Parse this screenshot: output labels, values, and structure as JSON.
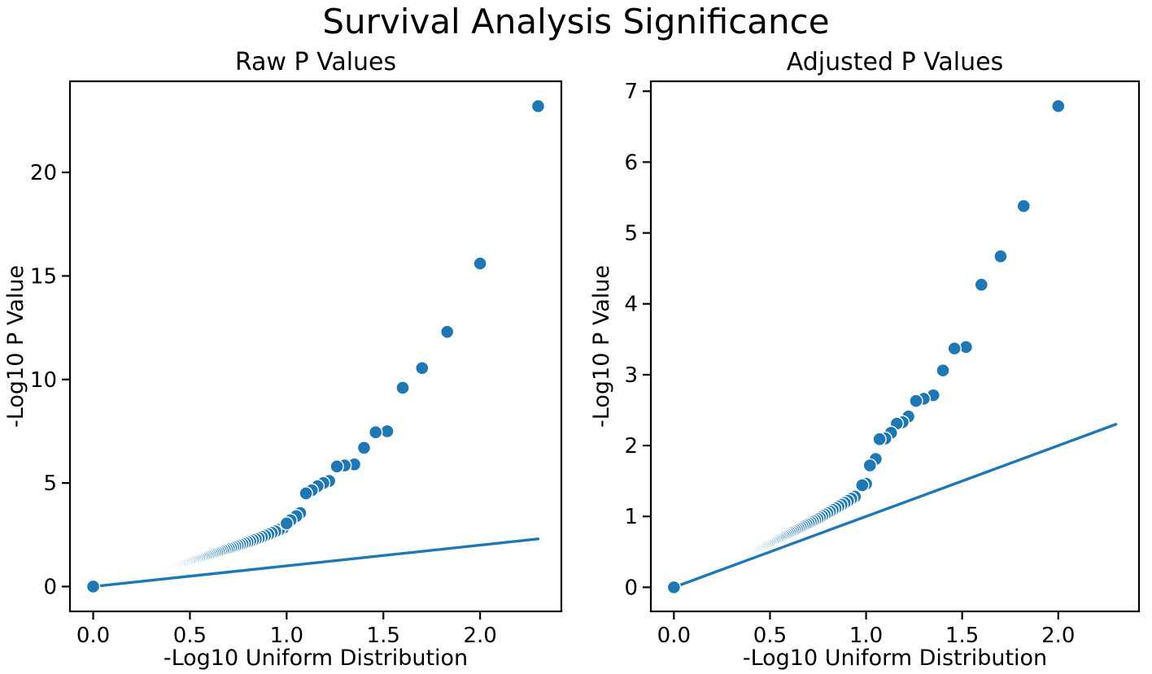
{
  "figure": {
    "title": "Survival Analysis Significance",
    "background_color": "#ffffff",
    "accent_color": "#1f77b4",
    "spine_color": "#000000"
  },
  "chart_data": [
    {
      "id": "raw",
      "type": "scatter",
      "title": "Raw P Values",
      "xlabel": "-Log10 Uniform Distribution",
      "ylabel": "-Log10 P Value",
      "xlim": [
        -0.12,
        2.42
      ],
      "ylim": [
        -1.2,
        24.4
      ],
      "xticks": {
        "values": [
          0,
          0.5,
          1,
          1.5,
          2
        ],
        "labels": [
          "0.0",
          "0.5",
          "1.0",
          "1.5",
          "2.0"
        ]
      },
      "yticks": {
        "values": [
          0,
          5,
          10,
          15,
          20
        ],
        "labels": [
          "0",
          "5",
          "10",
          "15",
          "20"
        ]
      },
      "grid": false,
      "legend": null,
      "reference_line": {
        "x": [
          0,
          2.3
        ],
        "y": [
          0,
          2.3
        ]
      },
      "marker": {
        "fill": "#1f77b4",
        "edge": "#ffffff",
        "radius": 8.0,
        "edge_width": 1.4
      },
      "line_style": {
        "color": "#1f77b4",
        "width": 3.4
      },
      "points": [
        [
          2.3,
          23.2
        ],
        [
          2.0,
          15.6
        ],
        [
          1.83,
          12.3
        ],
        [
          1.7,
          10.55
        ],
        [
          1.6,
          9.6
        ],
        [
          1.52,
          7.5
        ],
        [
          1.46,
          7.45
        ],
        [
          1.4,
          6.7
        ],
        [
          1.35,
          5.9
        ],
        [
          1.3,
          5.85
        ],
        [
          1.26,
          5.8
        ],
        [
          1.22,
          5.1
        ],
        [
          1.19,
          5.0
        ],
        [
          1.16,
          4.85
        ],
        [
          1.13,
          4.65
        ],
        [
          1.1,
          4.5
        ],
        [
          1.07,
          3.55
        ],
        [
          1.05,
          3.4
        ],
        [
          1.02,
          3.2
        ],
        [
          1.0,
          3.05
        ],
        [
          0.0,
          0.0
        ]
      ],
      "dense_band": {
        "description": "overplotted low-significance points hugging just above the reference line",
        "n_tests": 200,
        "index_start": 21,
        "index_end": 200,
        "curve_samples": [
          [
            0.98,
            2.82
          ],
          [
            0.95,
            2.7
          ],
          [
            0.9,
            2.5
          ],
          [
            0.85,
            2.32
          ],
          [
            0.8,
            2.15
          ],
          [
            0.75,
            1.99
          ],
          [
            0.7,
            1.84
          ],
          [
            0.65,
            1.68
          ],
          [
            0.6,
            1.53
          ],
          [
            0.55,
            1.38
          ],
          [
            0.5,
            1.24
          ],
          [
            0.45,
            1.09
          ],
          [
            0.4,
            0.95
          ],
          [
            0.35,
            0.81
          ],
          [
            0.3,
            0.68
          ],
          [
            0.25,
            0.55
          ],
          [
            0.2,
            0.43
          ],
          [
            0.15,
            0.31
          ],
          [
            0.1,
            0.2
          ],
          [
            0.05,
            0.1
          ],
          [
            0.0,
            0.0
          ]
        ]
      }
    },
    {
      "id": "adjusted",
      "type": "scatter",
      "title": "Adjusted P Values",
      "xlabel": "-Log10 Uniform Distribution",
      "ylabel": "-Log10 P Value",
      "xlim": [
        -0.12,
        2.42
      ],
      "ylim": [
        -0.34,
        7.14
      ],
      "xticks": {
        "values": [
          0,
          0.5,
          1,
          1.5,
          2
        ],
        "labels": [
          "0.0",
          "0.5",
          "1.0",
          "1.5",
          "2.0"
        ]
      },
      "yticks": {
        "values": [
          0,
          1,
          2,
          3,
          4,
          5,
          6,
          7
        ],
        "labels": [
          "0",
          "1",
          "2",
          "3",
          "4",
          "5",
          "6",
          "7"
        ]
      },
      "grid": false,
      "legend": null,
      "reference_line": {
        "x": [
          0,
          2.3
        ],
        "y": [
          0,
          2.3
        ]
      },
      "marker": {
        "fill": "#1f77b4",
        "edge": "#ffffff",
        "radius": 8.0,
        "edge_width": 1.4
      },
      "line_style": {
        "color": "#1f77b4",
        "width": 3.4
      },
      "points": [
        [
          2.0,
          6.79
        ],
        [
          1.82,
          5.38
        ],
        [
          1.7,
          4.67
        ],
        [
          1.6,
          4.27
        ],
        [
          1.52,
          3.39
        ],
        [
          1.46,
          3.37
        ],
        [
          1.4,
          3.06
        ],
        [
          1.35,
          2.71
        ],
        [
          1.3,
          2.66
        ],
        [
          1.26,
          2.63
        ],
        [
          1.22,
          2.41
        ],
        [
          1.19,
          2.33
        ],
        [
          1.16,
          2.31
        ],
        [
          1.13,
          2.18
        ],
        [
          1.1,
          2.1
        ],
        [
          1.07,
          2.09
        ],
        [
          1.05,
          1.81
        ],
        [
          1.02,
          1.72
        ],
        [
          1.0,
          1.46
        ],
        [
          0.98,
          1.44
        ],
        [
          0.0,
          0.0
        ]
      ],
      "dense_band": {
        "description": "overplotted adjusted p-values hugging just above the reference line",
        "n_tests": 200,
        "index_start": 23,
        "index_end": 200,
        "curve_samples": [
          [
            0.94,
            1.28
          ],
          [
            0.9,
            1.21
          ],
          [
            0.85,
            1.13
          ],
          [
            0.8,
            1.05
          ],
          [
            0.75,
            0.97
          ],
          [
            0.7,
            0.9
          ],
          [
            0.65,
            0.83
          ],
          [
            0.6,
            0.76
          ],
          [
            0.55,
            0.69
          ],
          [
            0.5,
            0.62
          ],
          [
            0.45,
            0.55
          ],
          [
            0.4,
            0.48
          ],
          [
            0.35,
            0.42
          ],
          [
            0.3,
            0.35
          ],
          [
            0.25,
            0.29
          ],
          [
            0.2,
            0.23
          ],
          [
            0.15,
            0.17
          ],
          [
            0.1,
            0.11
          ],
          [
            0.05,
            0.06
          ],
          [
            0.0,
            0.0
          ]
        ]
      }
    }
  ]
}
